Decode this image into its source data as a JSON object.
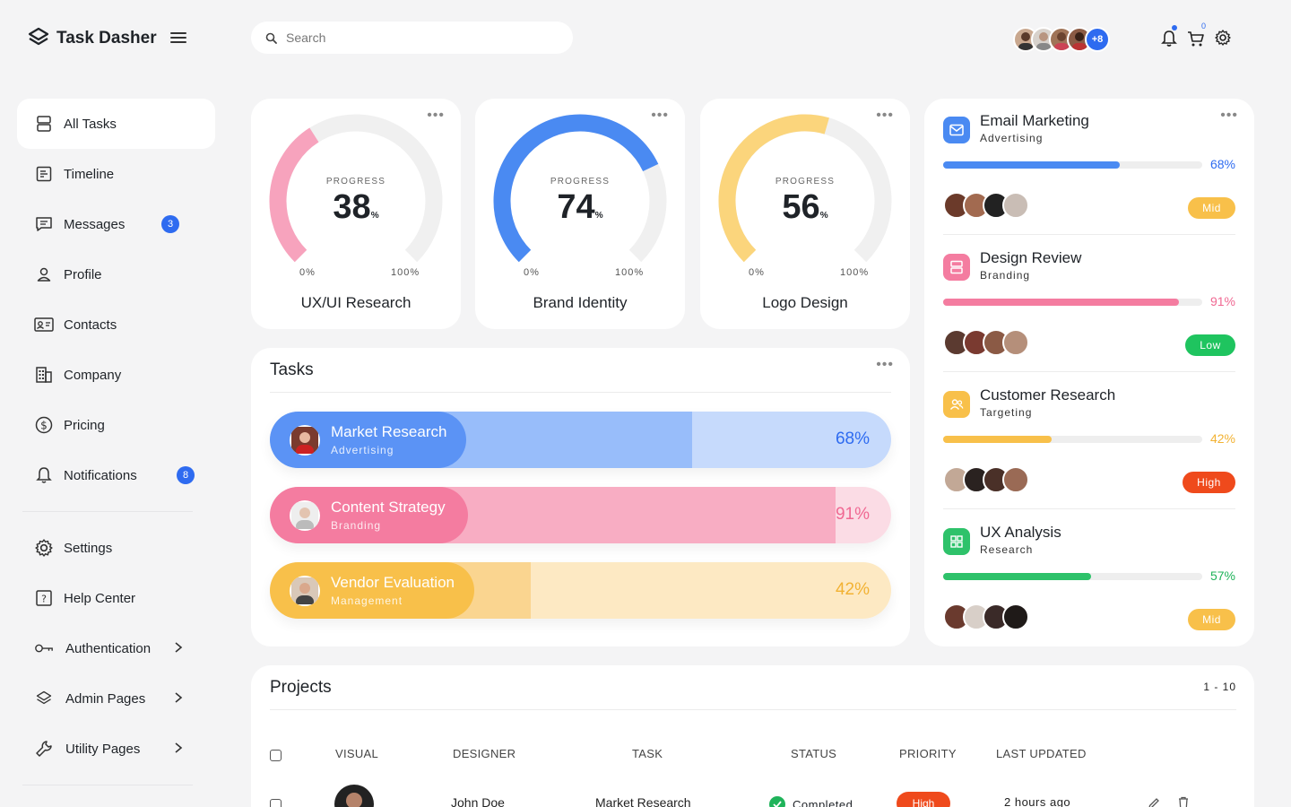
{
  "app": {
    "name": "Task Dasher"
  },
  "search": {
    "placeholder": "Search",
    "value": ""
  },
  "header": {
    "team_more": "+8",
    "cart_count": "0"
  },
  "sidebar": {
    "items": [
      {
        "label": "All Tasks",
        "icon": "server-icon",
        "active": true
      },
      {
        "label": "Timeline",
        "icon": "timeline-icon"
      },
      {
        "label": "Messages",
        "icon": "message-icon",
        "badge": "3"
      },
      {
        "label": "Profile",
        "icon": "user-icon"
      },
      {
        "label": "Contacts",
        "icon": "contact-card-icon"
      },
      {
        "label": "Company",
        "icon": "building-icon"
      },
      {
        "label": "Pricing",
        "icon": "dollar-icon"
      },
      {
        "label": "Notifications",
        "icon": "bell-icon",
        "badge": "8"
      }
    ],
    "secondary": [
      {
        "label": "Settings",
        "icon": "gear-icon"
      },
      {
        "label": "Help Center",
        "icon": "help-icon"
      },
      {
        "label": "Authentication",
        "icon": "key-icon",
        "expandable": true
      },
      {
        "label": "Admin Pages",
        "icon": "layers-icon",
        "expandable": true
      },
      {
        "label": "Utility Pages",
        "icon": "wrench-icon",
        "expandable": true
      }
    ]
  },
  "gauges": [
    {
      "caption": "PROGRESS",
      "value": "38",
      "percent": 38,
      "unit": "%",
      "min": "0%",
      "max": "100%",
      "title": "UX/UI Research",
      "color": "#f7a3bd"
    },
    {
      "caption": "PROGRESS",
      "value": "74",
      "percent": 74,
      "unit": "%",
      "min": "0%",
      "max": "100%",
      "title": "Brand Identity",
      "color": "#4a8af2"
    },
    {
      "caption": "PROGRESS",
      "value": "56",
      "percent": 56,
      "unit": "%",
      "min": "0%",
      "max": "100%",
      "title": "Logo Design",
      "color": "#fbd57c"
    }
  ],
  "tasks": {
    "title": "Tasks",
    "items": [
      {
        "name": "Market Research",
        "category": "Advertising",
        "percent_label": "68%",
        "percent": 68,
        "pill": "#5b93f5",
        "fill": "#98bdfa",
        "track": "#c6dafc",
        "text": "#2e6bf0"
      },
      {
        "name": "Content Strategy",
        "category": "Branding",
        "percent_label": "91%",
        "percent": 91,
        "pill": "#f47ca0",
        "fill": "#f8adc3",
        "track": "#fbdce5",
        "text": "#f06892"
      },
      {
        "name": "Vendor Evaluation",
        "category": "Management",
        "percent_label": "42%",
        "percent": 42,
        "pill": "#f8c04a",
        "fill": "#fad590",
        "track": "#fde9c3",
        "text": "#f2b233"
      }
    ]
  },
  "campaigns": [
    {
      "title": "Email Marketing",
      "category": "Advertising",
      "percent_label": "68%",
      "percent": 68,
      "color": "#2e6bf0",
      "bar": "#4a8af2",
      "icon": "mail-icon",
      "priority": "Mid",
      "priority_color": "#f8c04a"
    },
    {
      "title": "Design Review",
      "category": "Branding",
      "percent_label": "91%",
      "percent": 91,
      "color": "#f06892",
      "bar": "#f47ca0",
      "icon": "server-icon",
      "priority": "Low",
      "priority_color": "#1fc45f"
    },
    {
      "title": "Customer Research",
      "category": "Targeting",
      "percent_label": "42%",
      "percent": 42,
      "color": "#f2b233",
      "bar": "#f8c04a",
      "icon": "users-icon",
      "priority": "High",
      "priority_color": "#ef4a1c"
    },
    {
      "title": "UX Analysis",
      "category": "Research",
      "percent_label": "57%",
      "percent": 57,
      "color": "#1fb35a",
      "bar": "#2ec26a",
      "icon": "grid-icon",
      "priority": "Mid",
      "priority_color": "#f8c04a"
    }
  ],
  "projects": {
    "title": "Projects",
    "range": "1 - 10",
    "columns": [
      "VISUAL",
      "DESIGNER",
      "TASK",
      "STATUS",
      "PRIORITY",
      "LAST UPDATED"
    ],
    "rows": [
      {
        "designer": "John Doe",
        "task": "Market Research",
        "status": "Completed",
        "priority": "High",
        "updated": "2 hours ago"
      }
    ]
  }
}
